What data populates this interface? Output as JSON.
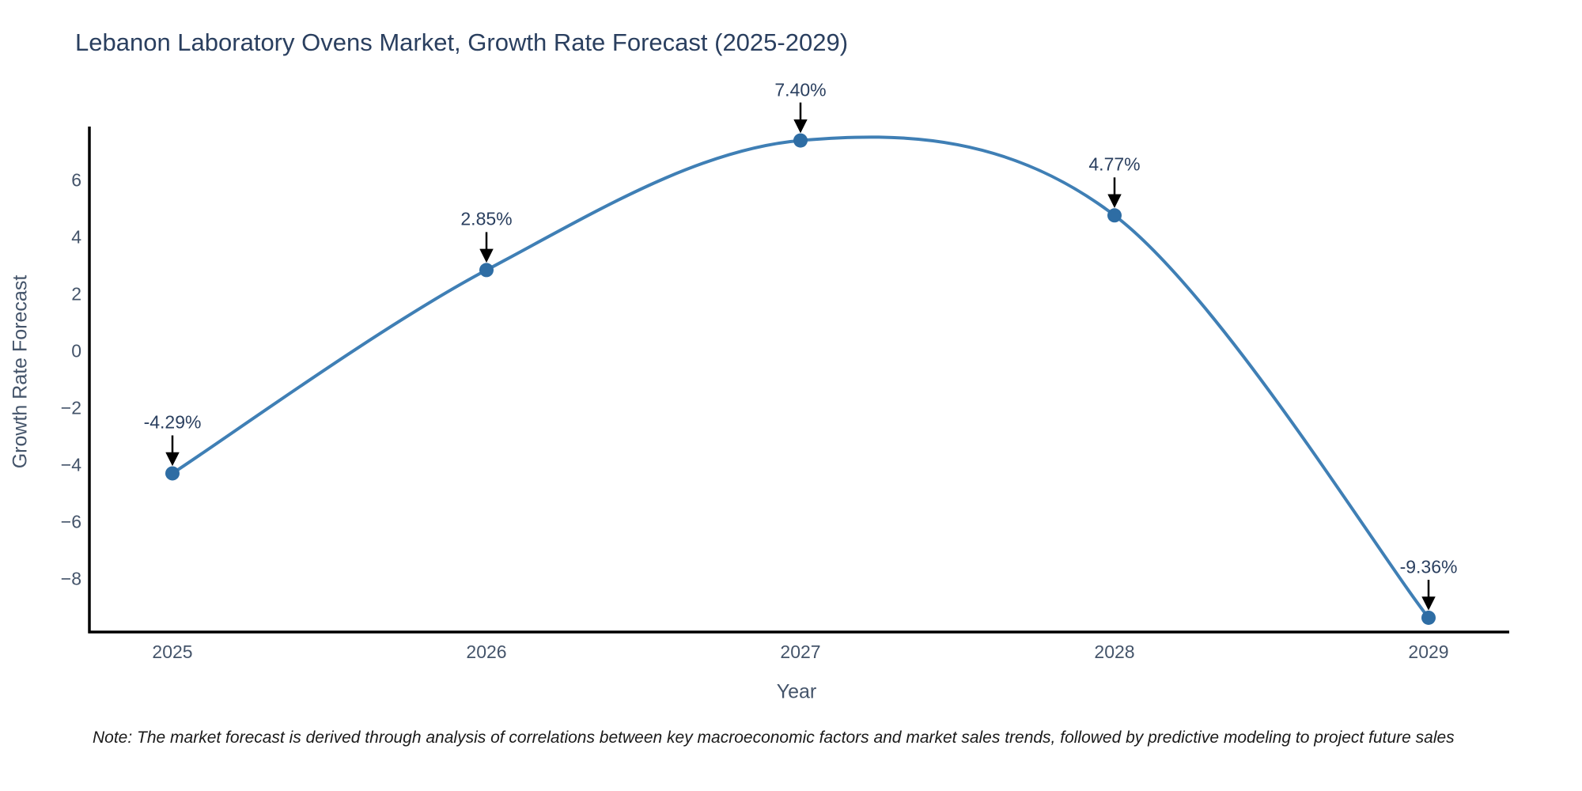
{
  "title": "Lebanon Laboratory Ovens Market, Growth Rate Forecast (2025-2029)",
  "note": "Note: The market forecast is derived through analysis of correlations between key macroeconomic factors and market sales trends, followed by predictive modeling to project future sales",
  "chart_data": {
    "type": "line",
    "title": "Lebanon Laboratory Ovens Market, Growth Rate Forecast (2025-2029)",
    "xlabel": "Year",
    "ylabel": "Growth Rate Forecast",
    "x": [
      2025,
      2026,
      2027,
      2028,
      2029
    ],
    "y": [
      -4.29,
      2.85,
      7.4,
      4.77,
      -9.36
    ],
    "point_labels": [
      "-4.29%",
      "2.85%",
      "7.40%",
      "4.77%",
      "-9.36%"
    ],
    "x_tick_labels": [
      "2025",
      "2026",
      "2027",
      "2028",
      "2029"
    ],
    "y_tick_values": [
      6,
      4,
      2,
      0,
      -2,
      -4,
      -6,
      -8
    ],
    "y_tick_labels": [
      "6",
      "4",
      "2",
      "0",
      "−2",
      "−4",
      "−6",
      "−8"
    ],
    "ylim": [
      -9.9,
      7.7
    ],
    "grid": false,
    "legend_position": "none",
    "smooth_spline": true,
    "annotation_style": "arrow-down-to-point"
  },
  "colors": {
    "line": "#3f7fb5",
    "marker": "#2e6da4",
    "axis": "#000000",
    "arrow": "#000000",
    "title_text": "#2a3f5f",
    "tick_text": "#44546a",
    "note_text": "#1a1a1a",
    "background": "#ffffff"
  }
}
